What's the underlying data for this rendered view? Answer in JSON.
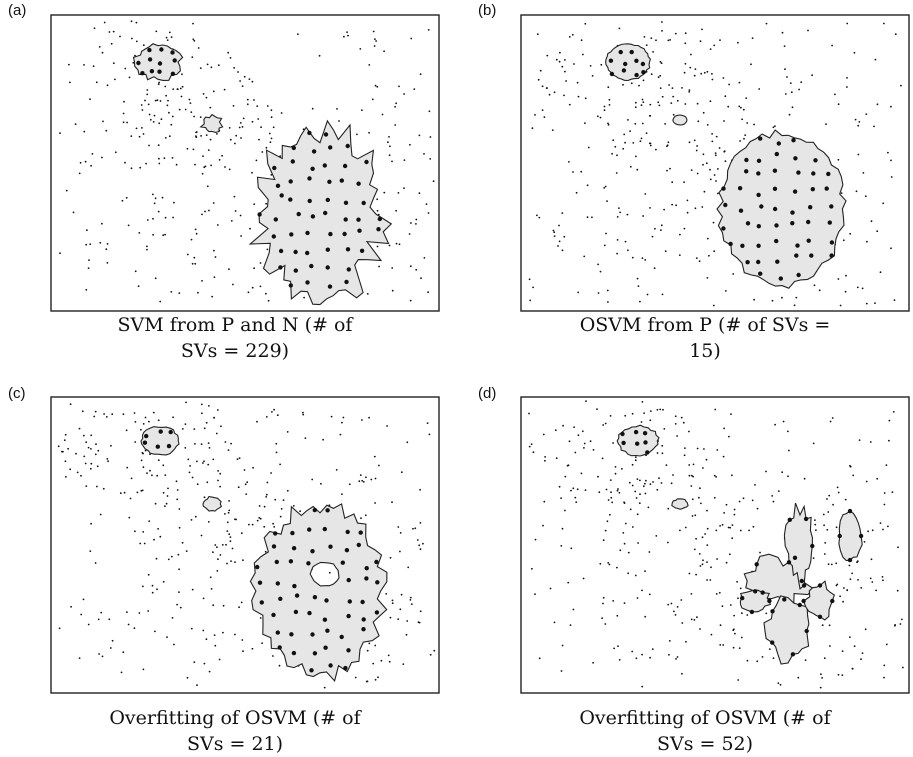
{
  "figure": {
    "panels": [
      {
        "letter": "(a)",
        "caption_line1": "SVM from P and N (# of",
        "caption_line2": "SVs = 229)"
      },
      {
        "letter": "(b)",
        "caption_line1": "OSVM from P (# of SVs =",
        "caption_line2": "15)"
      },
      {
        "letter": "(c)",
        "caption_line1": "Overfitting of OSVM (# of",
        "caption_line2": "SVs = 21)"
      },
      {
        "letter": "(d)",
        "caption_line1": "Overfitting of OSVM (# of",
        "caption_line2": "SVs = 52)"
      }
    ]
  },
  "colors": {
    "frame": "#222222",
    "region_fill": "#e6e6e6",
    "points": "#111111"
  }
}
